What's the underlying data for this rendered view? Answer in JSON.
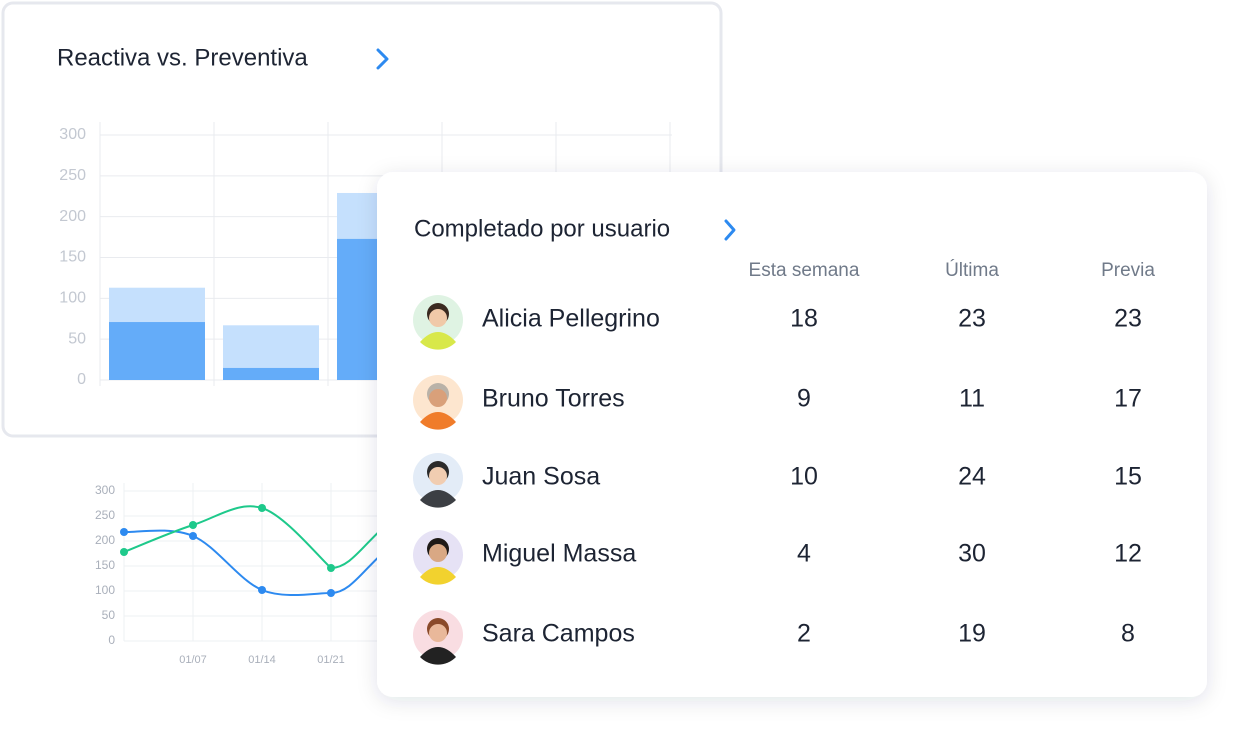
{
  "chart_data": [
    {
      "type": "bar",
      "stacked": true,
      "title": "Reactiva vs. Preventiva",
      "categories": [
        null,
        null,
        null
      ],
      "series": [
        {
          "color": "#64acf9",
          "values": [
            71,
            15,
            173
          ]
        },
        {
          "color": "#c5e0fd",
          "values": [
            42,
            52,
            56
          ]
        }
      ],
      "ylim": [
        0,
        300
      ],
      "yticks": [
        0,
        50,
        100,
        150,
        200,
        250,
        300
      ],
      "grid": true
    },
    {
      "type": "line",
      "smooth": true,
      "categories": [
        null,
        "01/07",
        "01/14",
        "01/21"
      ],
      "series": [
        {
          "color": "#2d8af0",
          "values": [
            218,
            210,
            102,
            96
          ]
        },
        {
          "color": "#1ec98b",
          "values": [
            178,
            232,
            266,
            146
          ]
        }
      ],
      "ylim": [
        0,
        300
      ],
      "yticks": [
        0,
        50,
        100,
        150,
        200,
        250,
        300
      ],
      "grid": true
    }
  ],
  "table": {
    "title": "Completado por usuario",
    "columns": [
      "Esta semana",
      "Última",
      "Previa"
    ],
    "rows": [
      {
        "name": "Alicia Pellegrino",
        "values": [
          18,
          23,
          23
        ]
      },
      {
        "name": "Bruno Torres",
        "values": [
          9,
          11,
          17
        ]
      },
      {
        "name": "Juan Sosa",
        "values": [
          10,
          24,
          15
        ]
      },
      {
        "name": "Miguel Massa",
        "values": [
          4,
          30,
          12
        ]
      },
      {
        "name": "Sara Campos",
        "values": [
          2,
          19,
          8
        ]
      }
    ]
  }
}
